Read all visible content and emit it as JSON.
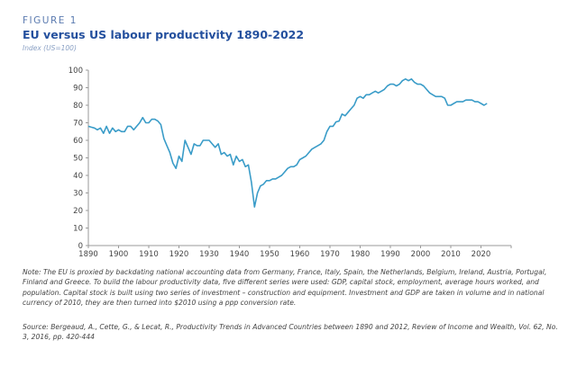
{
  "figure_label": "FIGURE 1",
  "chart_data": {
    "type": "line",
    "title": "EU versus US labour productivity 1890-2022",
    "subtitle": "Index (US=100)",
    "xlabel": "",
    "ylabel": "",
    "xlim": [
      1890,
      2030
    ],
    "ylim": [
      0,
      100
    ],
    "x_ticks": [
      1890,
      1900,
      1910,
      1920,
      1930,
      1940,
      1950,
      1960,
      1970,
      1980,
      1990,
      2000,
      2010,
      2020
    ],
    "y_ticks": [
      0,
      10,
      20,
      30,
      40,
      50,
      60,
      70,
      80,
      90,
      100
    ],
    "grid": false,
    "line_color": "#3a9cc8",
    "x_start": 1890,
    "values": [
      68,
      67.5,
      67,
      66,
      67,
      64,
      68,
      64,
      67,
      65,
      66,
      65,
      65,
      68,
      68,
      66,
      68,
      70,
      73,
      70,
      70,
      72,
      72,
      71,
      69,
      61,
      57,
      53,
      47,
      44,
      51,
      48,
      60,
      56,
      52,
      58,
      57,
      57,
      60,
      60,
      60,
      58,
      56,
      58,
      52,
      53,
      51,
      52,
      46,
      51,
      48,
      49,
      45,
      46,
      36,
      22,
      30,
      34,
      35,
      37,
      37,
      38,
      38,
      39,
      40,
      42,
      44,
      45,
      45,
      46,
      49,
      50,
      51,
      53,
      55,
      56,
      57,
      58,
      60,
      65,
      68,
      68,
      70.5,
      71,
      75,
      74,
      76,
      78,
      80,
      84,
      85,
      84,
      86,
      86,
      87,
      88,
      87,
      88,
      89,
      91,
      92,
      92,
      91,
      92,
      94,
      95,
      94,
      95,
      93,
      92,
      92,
      91,
      89,
      87,
      86,
      85,
      85,
      85,
      84,
      80,
      80,
      81,
      82,
      82,
      82,
      83,
      83,
      83,
      82,
      82,
      81,
      80,
      81
    ]
  },
  "note": "Note: The EU is proxied by backdating national accounting data from Germany, France, Italy, Spain, the Netherlands, Belgium, Ireland, Austria, Portugal, Finland and Greece. To build the labour productivity data, five different series were used: GDP, capital stock, employment, average hours worked, and population. Capital stock is built using two series of investment – construction and equipment. Investment and GDP are taken in volume and in national currency of 2010, they are then turned into $2010 using a ppp conversion rate.",
  "source": "Source: Bergeaud, A., Cette, G., & Lecat, R., Productivity Trends in Advanced Countries between 1890 and 2012, Review of Income and Wealth, Vol. 62, No. 3, 2016, pp. 420-444"
}
